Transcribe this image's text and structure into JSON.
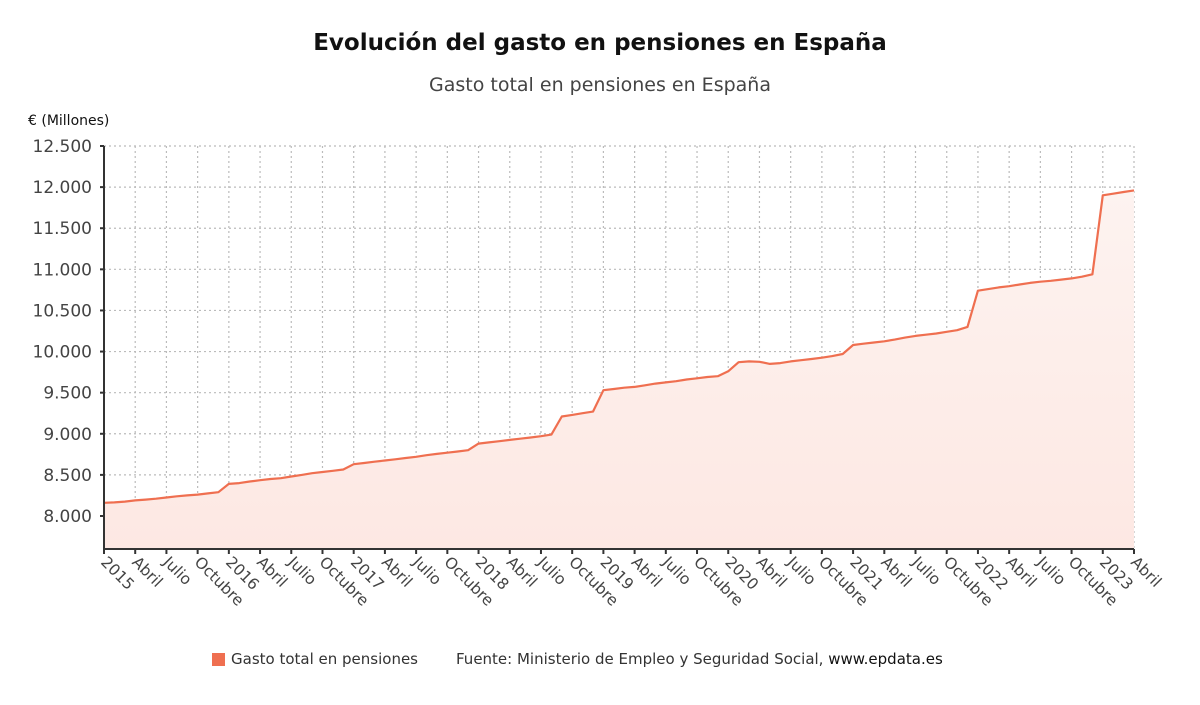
{
  "chart_data": {
    "type": "area",
    "title": "Evolución del gasto en pensiones en España",
    "subtitle": "Gasto total en pensiones en España",
    "ylabel": "€ (Millones)",
    "xlabel": "",
    "ylim": [
      7650,
      12500
    ],
    "yticks": [
      8000,
      8500,
      9000,
      9500,
      10000,
      10500,
      11000,
      11500,
      12000,
      12500
    ],
    "ytick_labels": [
      "8.000",
      "8.500",
      "9.000",
      "9.500",
      "10.000",
      "10.500",
      "11.000",
      "11.500",
      "12.000",
      "12.500"
    ],
    "x_start": "2015-01",
    "x_end": "2023-04",
    "xtick_labels": [
      "2015",
      "Abril",
      "Julio",
      "Octubre",
      "2016",
      "Abril",
      "Julio",
      "Octubre",
      "2017",
      "Abril",
      "Julio",
      "Octubre",
      "2018",
      "Abril",
      "Julio",
      "Octubre",
      "2019",
      "Abril",
      "Julio",
      "Octubre",
      "2020",
      "Abril",
      "Julio",
      "Octubre",
      "2021",
      "Abril",
      "Julio",
      "Octubre",
      "2022",
      "Abril",
      "Julio",
      "Octubre",
      "2023",
      "Abril"
    ],
    "grid": true,
    "legend_position": "bottom",
    "series": [
      {
        "name": "Gasto total en pensiones",
        "color": "#ef6f50",
        "values": [
          8160,
          8165,
          8175,
          8190,
          8200,
          8210,
          8225,
          8240,
          8250,
          8260,
          8275,
          8290,
          8390,
          8400,
          8420,
          8435,
          8450,
          8460,
          8480,
          8500,
          8520,
          8535,
          8550,
          8565,
          8630,
          8645,
          8660,
          8675,
          8690,
          8705,
          8720,
          8740,
          8755,
          8770,
          8785,
          8800,
          8880,
          8895,
          8910,
          8925,
          8940,
          8955,
          8970,
          8990,
          9210,
          9230,
          9250,
          9270,
          9530,
          9545,
          9560,
          9570,
          9590,
          9610,
          9625,
          9640,
          9660,
          9675,
          9690,
          9700,
          9760,
          9870,
          9880,
          9875,
          9850,
          9860,
          9880,
          9895,
          9910,
          9925,
          9945,
          9970,
          10080,
          10095,
          10110,
          10125,
          10145,
          10170,
          10190,
          10205,
          10220,
          10240,
          10260,
          10300,
          10740,
          10760,
          10780,
          10795,
          10815,
          10835,
          10850,
          10860,
          10875,
          10890,
          10910,
          10940,
          11900,
          11920,
          11940,
          11960
        ]
      }
    ]
  },
  "legend": {
    "label": "Gasto total en pensiones"
  },
  "source": {
    "text": "Fuente: Ministerio de Empleo y Seguridad Social,",
    "link": "www.epdata.es"
  }
}
